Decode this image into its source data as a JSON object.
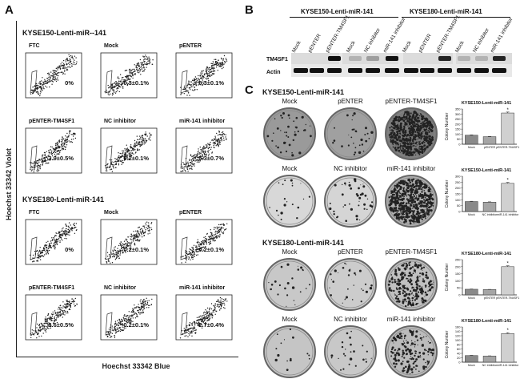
{
  "panelA": {
    "letter": "A",
    "y_axis_label": "Hoechst 33342 Violet",
    "x_axis_label": "Hoechst 33342 Blue",
    "groups": [
      {
        "title": "KYSE150-Lenti-miR--141",
        "plots": [
          {
            "label": "FTC",
            "value": "0%"
          },
          {
            "label": "Mock",
            "value": "0.3±0.1%"
          },
          {
            "label": "pENTER",
            "value": "0.3±0.1%"
          },
          {
            "label": "pENTER-TM4SF1",
            "value": "3.9±0.5%"
          },
          {
            "label": "NC inhibitor",
            "value": "0.2±0.1%"
          },
          {
            "label": "miR-141 inhibitor",
            "value": "5.3±0.7%"
          }
        ]
      },
      {
        "title": "KYSE180-Lenti-miR-141",
        "plots": [
          {
            "label": "FTC",
            "value": "0%"
          },
          {
            "label": "Mock",
            "value": "0.2±0.1%"
          },
          {
            "label": "pENTER",
            "value": "0.2±0.1%"
          },
          {
            "label": "pENTER-TM4SF1",
            "value": "3.6±0.5%"
          },
          {
            "label": "NC inhibitor",
            "value": "0.2±0.1%"
          },
          {
            "label": "miR-141 inhibitor",
            "value": "2.7±0.4%"
          }
        ]
      }
    ]
  },
  "panelB": {
    "letter": "B",
    "group1_title": "KYSE150-Lenti-miR-141",
    "group2_title": "KYSE180-Lenti-miR-141",
    "lanes": [
      "Mock",
      "pENTER",
      "pENTER-TM4SF1",
      "Mock",
      "NC inhibitor",
      "miR-141 inhibitor",
      "Mock",
      "pENTER",
      "pENTER-TM4SF1",
      "Mock",
      "NC inhibitor",
      "miR-141 inhibitor"
    ],
    "row1": "TM4SF1",
    "row2": "Actin"
  },
  "panelC": {
    "letter": "C",
    "group1_title": "KYSE150-Lenti-miR-141",
    "group2_title": "KYSE180-Lenti-miR-141",
    "rows": [
      {
        "dishes": [
          "Mock",
          "pENTER",
          "pENTER-TM4SF1"
        ]
      },
      {
        "dishes": [
          "Mock",
          "NC inhibitor",
          "miR-141 inhibitor"
        ]
      },
      {
        "dishes": [
          "Mock",
          "pENTER",
          "pENTER-TM4SF1"
        ]
      },
      {
        "dishes": [
          "Mock",
          "NC inhibitor",
          "miR-141 inhibitor"
        ]
      }
    ]
  },
  "chart_data": [
    {
      "type": "bar",
      "title": "KYSE150-Lenti-miR-141",
      "ylabel": "Colony Number",
      "categories": [
        "Mock",
        "pENTER",
        "pENTER-TM4SF1"
      ],
      "values": [
        90,
        75,
        310
      ],
      "ylim": [
        0,
        350
      ],
      "yticks": [
        "0",
        "50",
        "100",
        "150",
        "200",
        "250",
        "300",
        "350"
      ],
      "annotation": "*"
    },
    {
      "type": "bar",
      "title": "KYSE150-Lenti-miR-141",
      "ylabel": "Colony Number",
      "categories": [
        "Mock",
        "NC inhibitor",
        "miR-141 inhibitor"
      ],
      "values": [
        85,
        80,
        240
      ],
      "ylim": [
        0,
        300
      ],
      "yticks": [
        "0",
        "50",
        "100",
        "150",
        "200",
        "250",
        "300"
      ],
      "annotation": "*"
    },
    {
      "type": "bar",
      "title": "KYSE180-Lenti-miR-141",
      "ylabel": "Colony Number",
      "categories": [
        "Mock",
        "pENTER",
        "pENTER-TM4SF1"
      ],
      "values": [
        40,
        38,
        200
      ],
      "ylim": [
        0,
        250
      ],
      "yticks": [
        "0",
        "50",
        "100",
        "150",
        "200",
        "250"
      ],
      "annotation": "*"
    },
    {
      "type": "bar",
      "title": "KYSE180-Lenti-miR-141",
      "ylabel": "Colony Number",
      "categories": [
        "Mock",
        "NC inhibitor",
        "miR-141 inhibitor"
      ],
      "values": [
        30,
        28,
        130
      ],
      "ylim": [
        0,
        160
      ],
      "yticks": [
        "0",
        "20",
        "40",
        "60",
        "80",
        "100",
        "120",
        "140",
        "160"
      ],
      "annotation": "*"
    }
  ]
}
